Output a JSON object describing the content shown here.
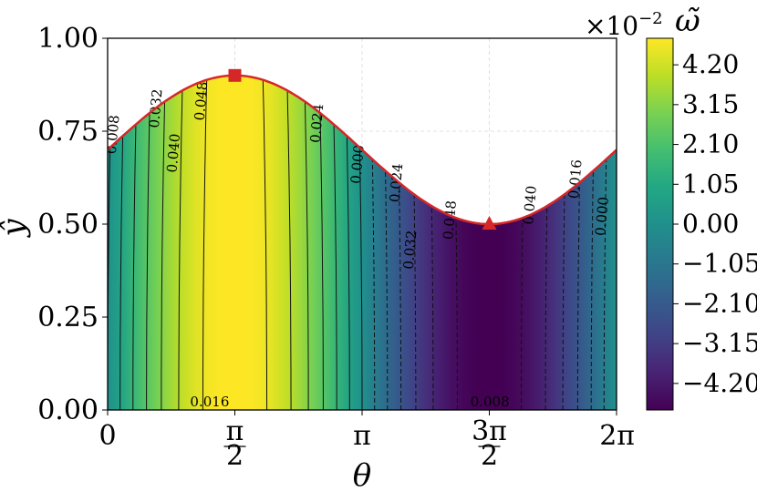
{
  "chart_data": {
    "type": "heatmap",
    "xlabel": "θ",
    "ylabel": "ŷ",
    "x_range": [
      0,
      6.283185
    ],
    "y_range": [
      0,
      1.0
    ],
    "x_ticks": [
      {
        "value": 0,
        "label": "0"
      },
      {
        "value": 1.5708,
        "label": "π/2",
        "num": "π",
        "den": "2"
      },
      {
        "value": 3.1416,
        "label": "π"
      },
      {
        "value": 4.7124,
        "label": "3π/2",
        "num": "3π",
        "den": "2"
      },
      {
        "value": 6.2832,
        "label": "2π"
      }
    ],
    "y_ticks": [
      {
        "value": 0.0,
        "label": "0.00"
      },
      {
        "value": 0.25,
        "label": "0.25"
      },
      {
        "value": 0.5,
        "label": "0.50"
      },
      {
        "value": 0.75,
        "label": "0.75"
      },
      {
        "value": 1.0,
        "label": "1.00"
      }
    ],
    "grid": true,
    "boundary": {
      "mean": 0.7,
      "amplitude": 0.2,
      "description": "y = 0.7 + 0.2·sin(θ)",
      "color": "#d62728"
    },
    "field": {
      "amplitude": 0.05,
      "description": "ω̃ ≈ 0.05·sin(θ)"
    },
    "markers": [
      {
        "shape": "square",
        "x": 1.5708,
        "y": 0.9,
        "color": "#d62728"
      },
      {
        "shape": "triangle",
        "x": 4.7124,
        "y": 0.5,
        "color": "#d62728"
      }
    ],
    "contour_labels": [
      {
        "text": "0.008",
        "x": 0.12,
        "y": 0.74
      },
      {
        "text": "0.032",
        "x": 0.65,
        "y": 0.81
      },
      {
        "text": "0.040",
        "x": 0.87,
        "y": 0.69
      },
      {
        "text": "0.048",
        "x": 1.21,
        "y": 0.83
      },
      {
        "text": "0.024",
        "x": 2.64,
        "y": 0.77
      },
      {
        "text": "0.000",
        "x": 3.14,
        "y": 0.66
      },
      {
        "text": "0.024",
        "x": 3.62,
        "y": 0.61
      },
      {
        "text": "0.032",
        "x": 3.79,
        "y": 0.43
      },
      {
        "text": "0.048",
        "x": 4.28,
        "y": 0.51
      },
      {
        "text": "0.040",
        "x": 5.27,
        "y": 0.55
      },
      {
        "text": "0.016",
        "x": 5.83,
        "y": 0.62
      },
      {
        "text": "0.000",
        "x": 6.16,
        "y": 0.52
      },
      {
        "text": "0.016",
        "x": 1.26,
        "y": 0.01
      },
      {
        "text": "0.008",
        "x": 4.72,
        "y": 0.01
      }
    ],
    "colorbar": {
      "label": "ω̃",
      "scale_text": "×10",
      "scale_exponent": "−2",
      "min": -4.9,
      "max": 4.9,
      "ticks": [
        "4.20",
        "3.15",
        "2.10",
        "1.05",
        "0.00",
        "−1.05",
        "−2.10",
        "−3.15",
        "−4.20"
      ],
      "tick_values": [
        4.2,
        3.15,
        2.1,
        1.05,
        0.0,
        -1.05,
        -2.1,
        -3.15,
        -4.2
      ],
      "colormap": "viridis"
    }
  }
}
